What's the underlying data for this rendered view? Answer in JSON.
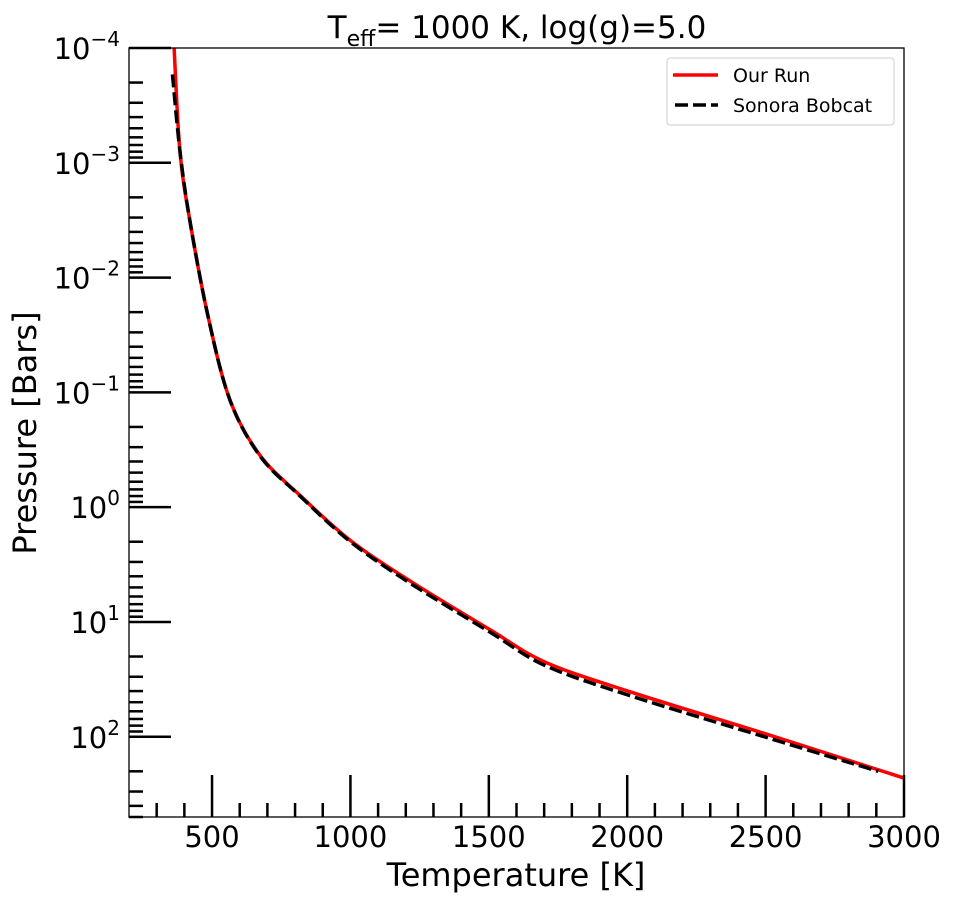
{
  "chart_data": {
    "type": "line",
    "title": "T_eff= 1000 K, log(g)=5.0",
    "title_parts": {
      "main": "T",
      "sub": "eff",
      "rest": "= 1000 K, log(g)=5.0"
    },
    "xlabel": "Temperature [K]",
    "ylabel": "Pressure [Bars]",
    "xlim": [
      200,
      3000
    ],
    "ylim": [
      0.0001,
      500
    ],
    "yscale": "log",
    "y_inverted": true,
    "grid": false,
    "legend_position": "upper right",
    "x_ticks": [
      500,
      1000,
      1500,
      2000,
      2500,
      3000
    ],
    "x_tick_labels": [
      "500",
      "1000",
      "1500",
      "2000",
      "2500",
      "3000"
    ],
    "y_ticks": [
      0.0001,
      0.001,
      0.01,
      0.1,
      1,
      10,
      100
    ],
    "y_tick_labels": [
      {
        "base": "10",
        "exp": "−4"
      },
      {
        "base": "10",
        "exp": "−3"
      },
      {
        "base": "10",
        "exp": "−2"
      },
      {
        "base": "10",
        "exp": "−1"
      },
      {
        "base": "10",
        "exp": "0"
      },
      {
        "base": "10",
        "exp": "1"
      },
      {
        "base": "10",
        "exp": "2"
      }
    ],
    "series": [
      {
        "name": "Our Run",
        "color": "#ff0000",
        "style": "solid",
        "x": [
          363,
          384,
          420,
          486,
          565,
          674,
          818,
          1000,
          1216,
          1505,
          1704,
          2012,
          2507,
          3000
        ],
        "y": [
          0.0001,
          0.00079,
          0.0032,
          0.022,
          0.117,
          0.355,
          0.79,
          1.95,
          4.4,
          11.7,
          22.4,
          40.7,
          95.5,
          229
        ]
      },
      {
        "name": "Sonora Bobcat",
        "color": "#000000",
        "style": "dashed",
        "x": [
          357,
          384,
          420,
          486,
          565,
          674,
          818,
          1000,
          1216,
          1505,
          1704,
          2012,
          2507,
          2907
        ],
        "y": [
          0.00017,
          0.00079,
          0.0032,
          0.022,
          0.117,
          0.36,
          0.8,
          2.0,
          4.6,
          12.3,
          24.0,
          44.0,
          102,
          200
        ]
      }
    ]
  }
}
